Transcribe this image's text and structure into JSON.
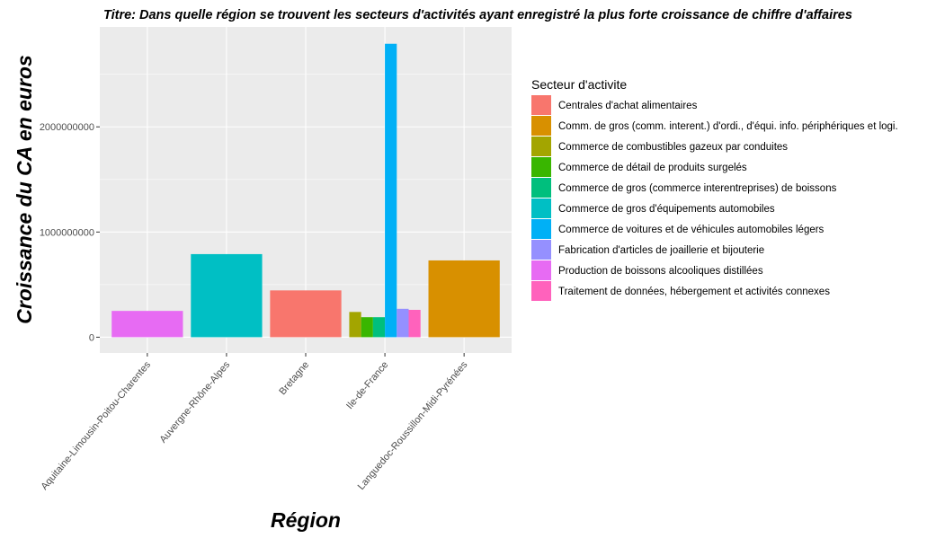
{
  "chart_data": {
    "type": "bar",
    "title": "Titre: Dans quelle région se trouvent les secteurs d'activités ayant enregistré la plus forte croissance de chiffre d'affaires",
    "xlabel": "Région",
    "ylabel": "Croissance du CA en euros",
    "ylim": [
      -150000000,
      2950000000
    ],
    "yticks": [
      0,
      1000000000,
      2000000000
    ],
    "ytick_labels": [
      "0",
      "1000000000",
      "2000000000"
    ],
    "grid": true,
    "categories": [
      "Aquitaine-Limousin-Poitou-Charentes",
      "Auvergne-Rhône-Alpes",
      "Bretagne",
      "Ile-de-France",
      "Languedoc-Roussillon-Midi-Pyrénées"
    ],
    "legend": {
      "title": "Secteur d'activite",
      "placement": "right",
      "entries": [
        {
          "label": "Centrales d'achat alimentaires",
          "color": "#F8766D"
        },
        {
          "label": "Comm. de gros (comm. interent.) d'ordi., d'équi. info. périphériques et logi.",
          "color": "#D89000"
        },
        {
          "label": "Commerce de combustibles gazeux par conduites",
          "color": "#A3A500"
        },
        {
          "label": "Commerce de détail de produits surgelés",
          "color": "#39B600"
        },
        {
          "label": "Commerce de gros (commerce interentreprises) de boissons",
          "color": "#00BF7D"
        },
        {
          "label": "Commerce de gros d'équipements automobiles",
          "color": "#00BFC4"
        },
        {
          "label": "Commerce de voitures et de véhicules automobiles légers",
          "color": "#00B0F6"
        },
        {
          "label": "Fabrication d'articles de joaillerie et bijouterie",
          "color": "#9590FF"
        },
        {
          "label": "Production de boissons alcooliques distillées",
          "color": "#E76BF3"
        },
        {
          "label": "Traitement de données, hébergement et activités connexes",
          "color": "#FF62BC"
        }
      ]
    },
    "bars": [
      {
        "category": "Aquitaine-Limousin-Poitou-Charentes",
        "sector": 8,
        "value": 250000000
      },
      {
        "category": "Auvergne-Rhône-Alpes",
        "sector": 5,
        "value": 790000000
      },
      {
        "category": "Bretagne",
        "sector": 0,
        "value": 445000000
      },
      {
        "category": "Ile-de-France",
        "sector": 2,
        "value": 240000000
      },
      {
        "category": "Ile-de-France",
        "sector": 3,
        "value": 190000000
      },
      {
        "category": "Ile-de-France",
        "sector": 4,
        "value": 190000000
      },
      {
        "category": "Ile-de-France",
        "sector": 6,
        "value": 2790000000
      },
      {
        "category": "Ile-de-France",
        "sector": 7,
        "value": 270000000
      },
      {
        "category": "Ile-de-France",
        "sector": 9,
        "value": 260000000
      },
      {
        "category": "Languedoc-Roussillon-Midi-Pyrénées",
        "sector": 1,
        "value": 730000000
      }
    ]
  }
}
